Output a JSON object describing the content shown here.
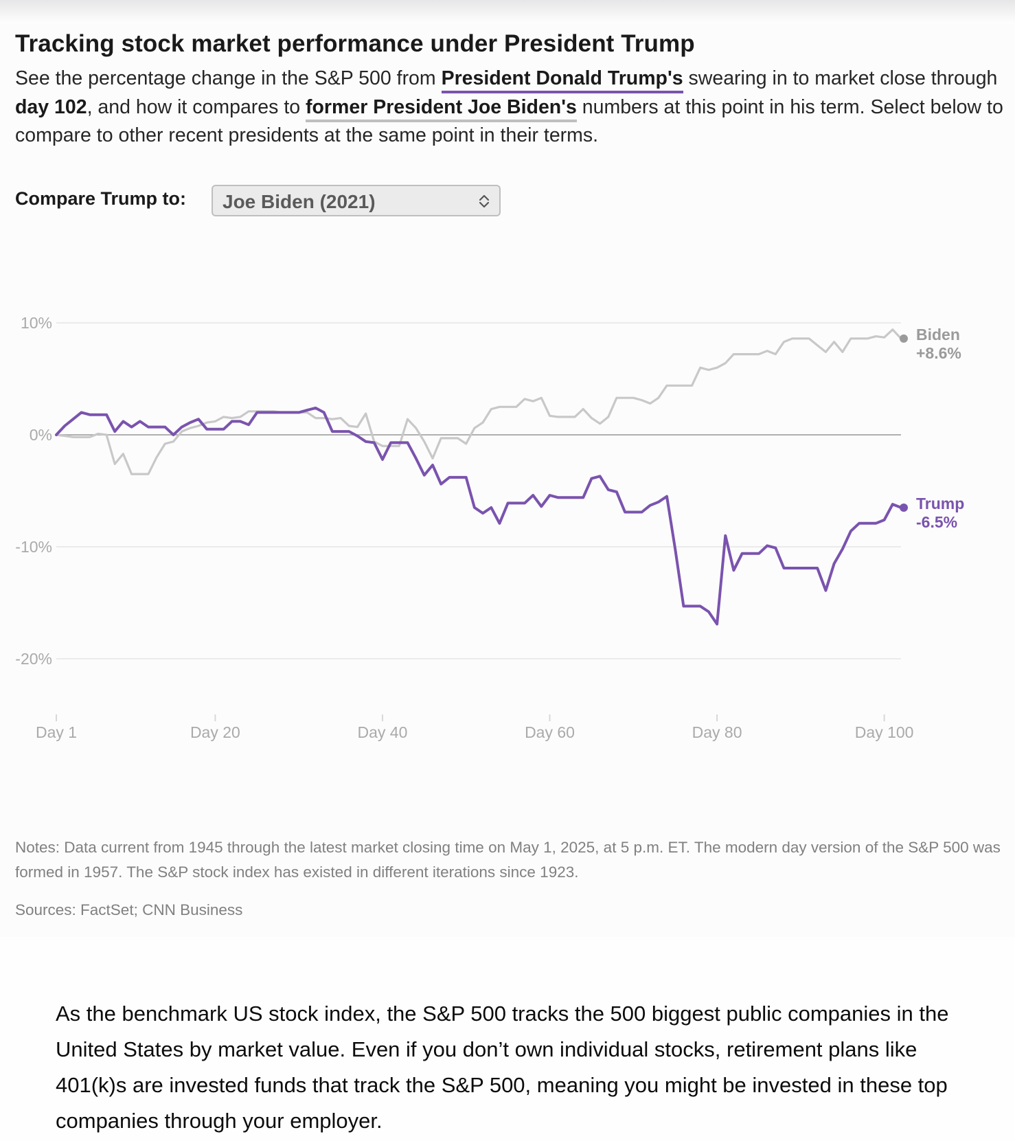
{
  "header": {
    "title": "Tracking stock market performance under President Trump",
    "subtitle": {
      "part1": "See the percentage change in the S&P 500 from ",
      "trump_link": "President Donald Trump's",
      "part2": " swearing in to market close through ",
      "day_bold": "day 102",
      "part3": ", and how it compares to ",
      "biden_link": "former President Joe Biden's",
      "part4": " numbers at this point in his term. Select below to compare to other recent presidents at the same point in their terms."
    }
  },
  "compare": {
    "label": "Compare Trump to:",
    "selected": "Joe Biden (2021)",
    "icon": "chevron-up-down-icon"
  },
  "colors": {
    "trump": "#7a53ae",
    "biden": "#c8c8c8",
    "biden_label": "#9a9a9a",
    "zero_line": "#b0b0b0",
    "grid": "#ebebeb"
  },
  "chart_data": {
    "type": "line",
    "title": "Tracking stock market performance under President Trump",
    "xlabel": "",
    "ylabel": "",
    "xlim": [
      1,
      102
    ],
    "ylim": [
      -25,
      12
    ],
    "grid": true,
    "yticks": [
      {
        "value": 10,
        "label": "10%"
      },
      {
        "value": 0,
        "label": "0%"
      },
      {
        "value": -10,
        "label": "-10%"
      },
      {
        "value": -20,
        "label": "-20%"
      }
    ],
    "xticks": [
      {
        "value": 1,
        "label": "Day 1"
      },
      {
        "value": 20,
        "label": "Day 20"
      },
      {
        "value": 40,
        "label": "Day 40"
      },
      {
        "value": 60,
        "label": "Day 60"
      },
      {
        "value": 80,
        "label": "Day 80"
      },
      {
        "value": 100,
        "label": "Day 100"
      }
    ],
    "series": [
      {
        "name": "Biden",
        "end_label": "Biden",
        "end_value_label": "+8.6%",
        "points": [
          [
            1,
            0
          ],
          [
            2,
            -0.1
          ],
          [
            3,
            -0.2
          ],
          [
            4,
            -0.2
          ],
          [
            5,
            -0.2
          ],
          [
            6,
            0.1
          ],
          [
            7,
            0
          ],
          [
            8,
            -2.6
          ],
          [
            9,
            -1.7
          ],
          [
            10,
            -3.5
          ],
          [
            11,
            -3.5
          ],
          [
            12,
            -3.5
          ],
          [
            13,
            -2
          ],
          [
            14,
            -0.8
          ],
          [
            15,
            -0.6
          ],
          [
            16,
            0.3
          ],
          [
            17,
            0.6
          ],
          [
            18,
            0.8
          ],
          [
            19,
            1.1
          ],
          [
            20,
            1.2
          ],
          [
            21,
            1.6
          ],
          [
            22,
            1.5
          ],
          [
            23,
            1.6
          ],
          [
            24,
            2.1
          ],
          [
            25,
            2.1
          ],
          [
            26,
            2.1
          ],
          [
            27,
            2.1
          ],
          [
            28,
            2.0
          ],
          [
            29,
            2.0
          ],
          [
            30,
            2.0
          ],
          [
            31,
            2.0
          ],
          [
            32,
            1.5
          ],
          [
            33,
            1.5
          ],
          [
            34,
            1.4
          ],
          [
            35,
            1.5
          ],
          [
            36,
            0.8
          ],
          [
            37,
            0.7
          ],
          [
            38,
            1.9
          ],
          [
            39,
            -0.6
          ],
          [
            40,
            -1.0
          ],
          [
            41,
            -1.0
          ],
          [
            42,
            -1.0
          ],
          [
            43,
            1.4
          ],
          [
            44,
            0.6
          ],
          [
            45,
            -0.6
          ],
          [
            46,
            -2.1
          ],
          [
            47,
            -0.3
          ],
          [
            48,
            -0.3
          ],
          [
            49,
            -0.3
          ],
          [
            50,
            -0.8
          ],
          [
            51,
            0.6
          ],
          [
            52,
            1.1
          ],
          [
            53,
            2.3
          ],
          [
            54,
            2.5
          ],
          [
            55,
            2.5
          ],
          [
            56,
            2.5
          ],
          [
            57,
            3.2
          ],
          [
            58,
            3.0
          ],
          [
            59,
            3.3
          ],
          [
            60,
            1.7
          ],
          [
            61,
            1.6
          ],
          [
            62,
            1.6
          ],
          [
            63,
            1.6
          ],
          [
            64,
            2.3
          ],
          [
            65,
            1.5
          ],
          [
            66,
            1.0
          ],
          [
            67,
            1.6
          ],
          [
            68,
            3.3
          ],
          [
            69,
            3.3
          ],
          [
            70,
            3.3
          ],
          [
            71,
            3.1
          ],
          [
            72,
            2.8
          ],
          [
            73,
            3.3
          ],
          [
            74,
            4.4
          ],
          [
            75,
            4.4
          ],
          [
            76,
            4.4
          ],
          [
            77,
            4.4
          ],
          [
            78,
            6.0
          ],
          [
            79,
            5.8
          ],
          [
            80,
            6.0
          ],
          [
            81,
            6.4
          ],
          [
            82,
            7.2
          ],
          [
            83,
            7.2
          ],
          [
            84,
            7.2
          ],
          [
            85,
            7.2
          ],
          [
            86,
            7.5
          ],
          [
            87,
            7.2
          ],
          [
            88,
            8.3
          ],
          [
            89,
            8.6
          ],
          [
            90,
            8.6
          ],
          [
            91,
            8.6
          ],
          [
            92,
            8.0
          ],
          [
            93,
            7.4
          ],
          [
            94,
            8.3
          ],
          [
            95,
            7.4
          ],
          [
            96,
            8.6
          ],
          [
            97,
            8.6
          ],
          [
            98,
            8.6
          ],
          [
            99,
            8.8
          ],
          [
            100,
            8.7
          ],
          [
            101,
            9.4
          ],
          [
            102,
            8.6
          ]
        ]
      },
      {
        "name": "Trump",
        "end_label": "Trump",
        "end_value_label": "-6.5%",
        "points": [
          [
            1,
            0
          ],
          [
            2,
            0.8
          ],
          [
            3,
            1.4
          ],
          [
            4,
            2.0
          ],
          [
            5,
            1.8
          ],
          [
            6,
            1.8
          ],
          [
            7,
            1.8
          ],
          [
            8,
            0.3
          ],
          [
            9,
            1.2
          ],
          [
            10,
            0.7
          ],
          [
            11,
            1.2
          ],
          [
            12,
            0.7
          ],
          [
            13,
            0.7
          ],
          [
            14,
            0.7
          ],
          [
            15,
            0
          ],
          [
            16,
            0.7
          ],
          [
            17,
            1.1
          ],
          [
            18,
            1.4
          ],
          [
            19,
            0.5
          ],
          [
            20,
            0.5
          ],
          [
            21,
            0.5
          ],
          [
            22,
            1.2
          ],
          [
            23,
            1.2
          ],
          [
            24,
            0.9
          ],
          [
            25,
            2.0
          ],
          [
            26,
            2.0
          ],
          [
            27,
            2.0
          ],
          [
            28,
            2.0
          ],
          [
            29,
            2.0
          ],
          [
            30,
            2.0
          ],
          [
            31,
            2.2
          ],
          [
            32,
            2.4
          ],
          [
            33,
            2.0
          ],
          [
            34,
            0.3
          ],
          [
            35,
            0.3
          ],
          [
            36,
            0.3
          ],
          [
            37,
            -0.1
          ],
          [
            38,
            -0.6
          ],
          [
            39,
            -0.7
          ],
          [
            40,
            -2.2
          ],
          [
            41,
            -0.7
          ],
          [
            42,
            -0.7
          ],
          [
            43,
            -0.7
          ],
          [
            44,
            -2.1
          ],
          [
            45,
            -3.6
          ],
          [
            46,
            -2.7
          ],
          [
            47,
            -4.4
          ],
          [
            48,
            -3.8
          ],
          [
            49,
            -3.8
          ],
          [
            50,
            -3.8
          ],
          [
            51,
            -6.5
          ],
          [
            52,
            -7.0
          ],
          [
            53,
            -6.5
          ],
          [
            54,
            -7.9
          ],
          [
            55,
            -6.1
          ],
          [
            56,
            -6.1
          ],
          [
            57,
            -6.1
          ],
          [
            58,
            -5.4
          ],
          [
            59,
            -6.4
          ],
          [
            60,
            -5.4
          ],
          [
            61,
            -5.6
          ],
          [
            62,
            -5.6
          ],
          [
            63,
            -5.6
          ],
          [
            64,
            -5.6
          ],
          [
            65,
            -3.9
          ],
          [
            66,
            -3.7
          ],
          [
            67,
            -4.9
          ],
          [
            68,
            -5.1
          ],
          [
            69,
            -6.9
          ],
          [
            70,
            -6.9
          ],
          [
            71,
            -6.9
          ],
          [
            72,
            -6.3
          ],
          [
            73,
            -6.0
          ],
          [
            74,
            -5.5
          ],
          [
            75,
            -10.2
          ],
          [
            76,
            -15.3
          ],
          [
            77,
            -15.3
          ],
          [
            78,
            -15.3
          ],
          [
            79,
            -15.8
          ],
          [
            80,
            -16.9
          ],
          [
            81,
            -9.0
          ],
          [
            82,
            -12.1
          ],
          [
            83,
            -10.6
          ],
          [
            84,
            -10.6
          ],
          [
            85,
            -10.6
          ],
          [
            86,
            -9.9
          ],
          [
            87,
            -10.1
          ],
          [
            88,
            -11.9
          ],
          [
            89,
            -11.9
          ],
          [
            90,
            -11.9
          ],
          [
            91,
            -11.9
          ],
          [
            92,
            -11.9
          ],
          [
            93,
            -13.9
          ],
          [
            94,
            -11.5
          ],
          [
            95,
            -10.2
          ],
          [
            96,
            -8.6
          ],
          [
            97,
            -7.9
          ],
          [
            98,
            -7.9
          ],
          [
            99,
            -7.9
          ],
          [
            100,
            -7.6
          ],
          [
            101,
            -6.2
          ],
          [
            102,
            -6.5
          ]
        ]
      }
    ]
  },
  "footer": {
    "notes": "Notes: Data current from 1945 through the latest market closing time on May 1, 2025, at 5 p.m. ET. The modern day version of the S&P 500 was formed in 1957. The S&P stock index has existed in different iterations since 1923.",
    "sources": "Sources: FactSet; CNN Business"
  },
  "article": {
    "paragraph": "As the benchmark US stock index, the S&P 500 tracks the 500 biggest public companies in the United States by market value. Even if you don’t own individual stocks, retirement plans like 401(k)s are invested funds that track the S&P 500, meaning you might be invested in these top companies through your employer."
  }
}
